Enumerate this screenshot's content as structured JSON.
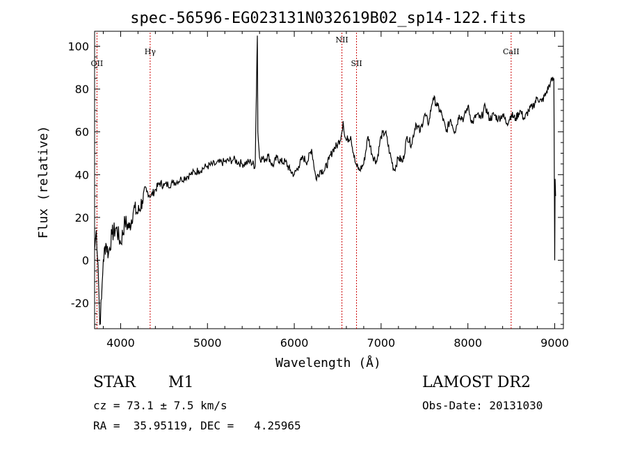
{
  "chart_data": {
    "type": "line",
    "title": "spec-56596-EG023131N032619B02_sp14-122.fits",
    "xlabel": "Wavelength (Å)",
    "ylabel": "Flux (relative)",
    "xlim": [
      3700,
      9100
    ],
    "ylim": [
      -32,
      107
    ],
    "xticks": [
      4000,
      5000,
      6000,
      7000,
      8000,
      9000
    ],
    "yticks": [
      -20,
      0,
      20,
      40,
      60,
      80,
      100
    ],
    "grid": false,
    "line_color": "#000000",
    "marker_color": "#cc0000",
    "spectrum": {
      "x": [
        3700,
        3720,
        3740,
        3760,
        3780,
        3800,
        3830,
        3860,
        3900,
        3950,
        4000,
        4050,
        4100,
        4150,
        4200,
        4250,
        4300,
        4350,
        4400,
        4450,
        4500,
        4600,
        4700,
        4800,
        4900,
        5000,
        5100,
        5200,
        5300,
        5400,
        5500,
        5550,
        5570,
        5575,
        5580,
        5600,
        5650,
        5700,
        5750,
        5800,
        5850,
        5900,
        5950,
        6000,
        6050,
        6100,
        6150,
        6200,
        6250,
        6300,
        6350,
        6400,
        6450,
        6500,
        6540,
        6563,
        6580,
        6600,
        6650,
        6700,
        6720,
        6750,
        6800,
        6850,
        6900,
        6950,
        7000,
        7050,
        7100,
        7150,
        7200,
        7250,
        7300,
        7350,
        7400,
        7450,
        7500,
        7550,
        7580,
        7600,
        7650,
        7700,
        7750,
        7800,
        7850,
        7900,
        7950,
        8000,
        8050,
        8100,
        8150,
        8200,
        8250,
        8300,
        8350,
        8400,
        8450,
        8500,
        8550,
        8600,
        8650,
        8700,
        8750,
        8800,
        8850,
        8900,
        8950,
        8990,
        9000,
        9005,
        9010
      ],
      "y": [
        5,
        14,
        -2,
        -30,
        -18,
        0,
        8,
        3,
        12,
        15,
        8,
        18,
        15,
        24,
        22,
        28,
        32,
        30,
        33,
        36,
        35,
        36,
        38,
        40,
        42,
        44,
        45,
        46,
        47,
        45,
        46,
        44,
        95,
        105,
        60,
        48,
        47,
        49,
        44,
        48,
        46,
        46,
        42,
        40,
        44,
        48,
        46,
        52,
        38,
        42,
        42,
        47,
        52,
        54,
        58,
        65,
        58,
        56,
        58,
        46,
        44,
        42,
        45,
        58,
        49,
        46,
        58,
        60,
        50,
        42,
        48,
        46,
        58,
        54,
        64,
        60,
        68,
        64,
        72,
        76,
        72,
        68,
        60,
        66,
        60,
        68,
        66,
        72,
        64,
        68,
        66,
        72,
        66,
        68,
        66,
        68,
        64,
        68,
        66,
        70,
        66,
        70,
        72,
        76,
        74,
        78,
        83,
        85,
        0,
        38,
        30
      ]
    },
    "line_markers": [
      {
        "label": "OII",
        "x": 3727
      },
      {
        "label": "Hγ",
        "x": 4340
      },
      {
        "label": "NII",
        "x": 6549
      },
      {
        "label": "SII",
        "x": 6717
      },
      {
        "label": "CaII",
        "x": 8498
      }
    ]
  },
  "info": {
    "class": "STAR",
    "subclass": "M1",
    "survey": "LAMOST DR2",
    "cz": "cz = 73.1 ± 7.5 km/s",
    "obs_date": "Obs-Date: 20131030",
    "coords": "RA =  35.95119, DEC =   4.25965"
  }
}
